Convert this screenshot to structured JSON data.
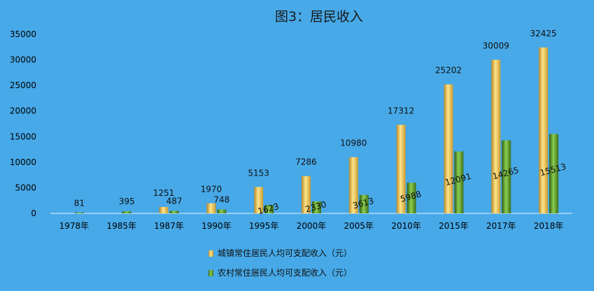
{
  "chart_data": {
    "type": "bar",
    "title": "图3：居民收入",
    "categories": [
      "1978年",
      "1985年",
      "1987年",
      "1990年",
      "1995年",
      "2000年",
      "2005年",
      "2010年",
      "2015年",
      "2017年",
      "2018年"
    ],
    "series": [
      {
        "name": "城镇常住居民人均可支配收入（元）",
        "values": [
          null,
          null,
          1251,
          1970,
          5153,
          7286,
          10980,
          17312,
          25202,
          30009,
          32425
        ],
        "color": "#f2c24a"
      },
      {
        "name": "农村常住居民人均可支配收入（元）",
        "values": [
          81,
          395,
          487,
          748,
          1623,
          2330,
          3613,
          5988,
          12091,
          14265,
          15513
        ],
        "color": "#5e9a2c"
      }
    ],
    "ylim": [
      0,
      35000
    ],
    "yticks": [
      0,
      5000,
      10000,
      15000,
      20000,
      25000,
      30000,
      35000
    ],
    "grid": false,
    "legend": "bottom-center",
    "background": "#47a9e8"
  }
}
